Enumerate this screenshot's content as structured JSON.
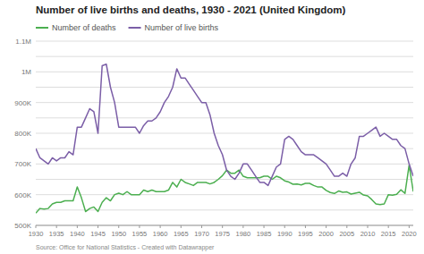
{
  "chart_data": {
    "type": "line",
    "title": "Number of live births and deaths, 1930 - 2021 (United Kingdom)",
    "annotations": [
      "Source: Office for National Statistics - Created with Datawrapper"
    ],
    "x": [
      1930,
      1931,
      1932,
      1933,
      1934,
      1935,
      1936,
      1937,
      1938,
      1939,
      1940,
      1941,
      1942,
      1943,
      1944,
      1945,
      1946,
      1947,
      1948,
      1949,
      1950,
      1951,
      1952,
      1953,
      1954,
      1955,
      1956,
      1957,
      1958,
      1959,
      1960,
      1961,
      1962,
      1963,
      1964,
      1965,
      1966,
      1967,
      1968,
      1969,
      1970,
      1971,
      1972,
      1973,
      1974,
      1975,
      1976,
      1977,
      1978,
      1979,
      1980,
      1981,
      1982,
      1983,
      1984,
      1985,
      1986,
      1987,
      1988,
      1989,
      1990,
      1991,
      1992,
      1993,
      1994,
      1995,
      1996,
      1997,
      1998,
      1999,
      2000,
      2001,
      2002,
      2003,
      2004,
      2005,
      2006,
      2007,
      2008,
      2009,
      2010,
      2011,
      2012,
      2013,
      2014,
      2015,
      2016,
      2017,
      2018,
      2019,
      2020,
      2021
    ],
    "series": [
      {
        "name": "Number of deaths",
        "color": "#4caf50",
        "values": [
          540000,
          555000,
          553000,
          555000,
          570000,
          575000,
          575000,
          580000,
          580000,
          580000,
          625000,
          590000,
          545000,
          555000,
          560000,
          545000,
          575000,
          590000,
          580000,
          600000,
          605000,
          600000,
          610000,
          600000,
          600000,
          600000,
          615000,
          610000,
          615000,
          610000,
          610000,
          610000,
          615000,
          640000,
          625000,
          650000,
          640000,
          635000,
          630000,
          640000,
          640000,
          640000,
          635000,
          640000,
          650000,
          662000,
          680000,
          670000,
          670000,
          680000,
          660000,
          655000,
          655000,
          655000,
          655000,
          660000,
          660000,
          650000,
          660000,
          655000,
          645000,
          641000,
          634000,
          635000,
          632000,
          637000,
          637000,
          630000,
          625000,
          625000,
          614000,
          607000,
          604000,
          612000,
          608000,
          609000,
          602000,
          605000,
          608000,
          599000,
          596000,
          584000,
          570000,
          568000,
          570000,
          600000,
          598000,
          601000,
          616000,
          604000,
          696000,
          610000
        ]
      },
      {
        "name": "Number of live births",
        "color": "#7b5ea7",
        "values": [
          750000,
          720000,
          710000,
          700000,
          720000,
          710000,
          720000,
          720000,
          740000,
          730000,
          820000,
          820000,
          850000,
          880000,
          870000,
          800000,
          1020000,
          1025000,
          950000,
          900000,
          820000,
          820000,
          820000,
          820000,
          820000,
          800000,
          825000,
          840000,
          840000,
          850000,
          870000,
          900000,
          920000,
          950000,
          1010000,
          980000,
          980000,
          960000,
          940000,
          920000,
          900000,
          900000,
          860000,
          800000,
          760000,
          730000,
          680000,
          660000,
          650000,
          670000,
          700000,
          700000,
          680000,
          660000,
          640000,
          640000,
          630000,
          660000,
          690000,
          700000,
          780000,
          790000,
          780000,
          760000,
          740000,
          730000,
          730000,
          730000,
          720000,
          710000,
          700000,
          680000,
          660000,
          660000,
          670000,
          660000,
          700000,
          720000,
          790000,
          790000,
          800000,
          810000,
          820000,
          790000,
          800000,
          790000,
          780000,
          780000,
          760000,
          750000,
          700000,
          660000
        ]
      }
    ],
    "xlim": [
      1930,
      2021
    ],
    "xticks": [
      1930,
      1935,
      1940,
      1945,
      1950,
      1955,
      1960,
      1965,
      1970,
      1975,
      1980,
      1985,
      1990,
      1995,
      2000,
      2005,
      2010,
      2015,
      2020
    ],
    "ylim": [
      500000,
      1100000
    ],
    "yticks": [
      {
        "value": 500000,
        "label": "500K"
      },
      {
        "value": 550000,
        "label": null
      },
      {
        "value": 600000,
        "label": "600K"
      },
      {
        "value": 650000,
        "label": null
      },
      {
        "value": 700000,
        "label": "700K"
      },
      {
        "value": 750000,
        "label": null
      },
      {
        "value": 800000,
        "label": "800K"
      },
      {
        "value": 850000,
        "label": null
      },
      {
        "value": 900000,
        "label": "900K"
      },
      {
        "value": 950000,
        "label": null
      },
      {
        "value": 1000000,
        "label": "1M"
      },
      {
        "value": 1050000,
        "label": null
      },
      {
        "value": 1100000,
        "label": "1.1M"
      }
    ],
    "grid": true,
    "legend": "top-left"
  }
}
